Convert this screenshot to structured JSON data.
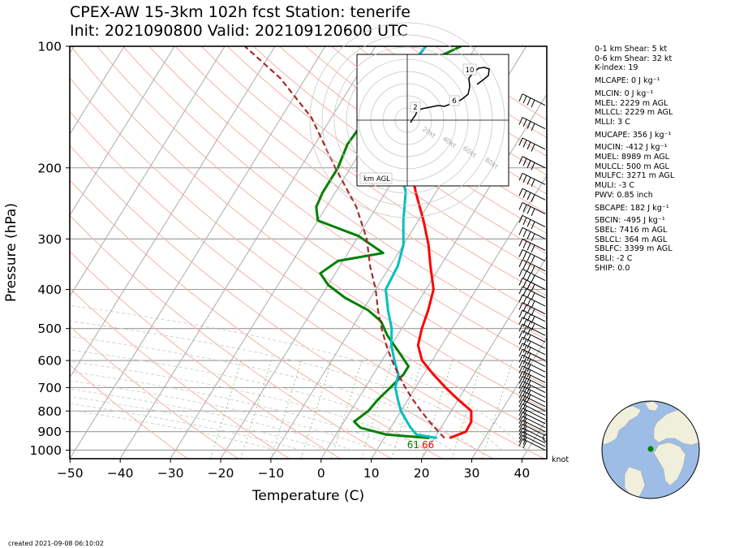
{
  "header": {
    "title_line1": "CPEX-AW 15-3km  102h fcst  Station: tenerife",
    "title_line2": "Init: 2021090800  Valid: 2021091206​00 UTC"
  },
  "stats": [
    "0-1 km Shear: 5 kt",
    "0-6 km Shear: 32 kt",
    "K-index: 19",
    "MLCAPE: 0 J kg⁻¹",
    "MLCIN: 0 J kg⁻¹",
    "MLEL: 2229 m AGL",
    "MLLCL: 2229 m AGL",
    "MLLI: 3 C",
    "MUCAPE: 356 J kg⁻¹",
    "MUCIN: -412 J kg⁻¹",
    "MUEL: 8989 m AGL",
    "MULCL: 500 m AGL",
    "MULFC: 3271 m AGL",
    "MULI: -3 C",
    "PWV: 0.85 inch",
    "SBCAPE: 182 J kg⁻¹",
    "SBCIN: -495 J kg⁻¹",
    "SBEL: 7416 m AGL",
    "SBLCL: 364 m AGL",
    "SBLFC: 3399 m AGL",
    "SBLI: -2 C",
    "SHIP: 0.0"
  ],
  "footer": {
    "created": "created 2021-09-08 06:10:02"
  },
  "chart_data": {
    "type": "line",
    "subtype": "skew-T log-p",
    "xlabel": "Temperature (C)",
    "ylabel": "Pressure (hPa)",
    "xlim": [
      -50,
      45
    ],
    "ylim": [
      1050,
      100
    ],
    "yscale": "log",
    "x_ticks": [
      -50,
      -40,
      -30,
      -20,
      -10,
      0,
      10,
      20,
      30,
      40
    ],
    "x_tick_labels": [
      "−50",
      "−40",
      "−30",
      "−20",
      "−10",
      "0",
      "10",
      "20",
      "30",
      "40"
    ],
    "y_ticks": [
      100,
      200,
      300,
      400,
      500,
      600,
      700,
      800,
      900,
      1000
    ],
    "surface_temp_label": "66",
    "surface_dewpoint_label": "61",
    "wind_unit_label": "knot",
    "series": [
      {
        "name": "temperature",
        "color": "#ff0000",
        "points": [
          [
            23,
            933
          ],
          [
            25.5,
            900
          ],
          [
            25.3,
            850
          ],
          [
            24,
            800
          ],
          [
            20,
            750
          ],
          [
            16,
            700
          ],
          [
            12,
            650
          ],
          [
            8,
            600
          ],
          [
            5.3,
            550
          ],
          [
            4,
            500
          ],
          [
            3,
            450
          ],
          [
            1.5,
            400
          ],
          [
            -2,
            350
          ],
          [
            -5,
            310
          ],
          [
            -9,
            270
          ],
          [
            -14,
            230
          ],
          [
            -18,
            200
          ],
          [
            -24,
            170
          ],
          [
            -28,
            140
          ],
          [
            -31,
            120
          ],
          [
            -30,
            100
          ]
        ]
      },
      {
        "name": "dewpoint",
        "color": "#008000",
        "points": [
          [
            19,
            933
          ],
          [
            10,
            915
          ],
          [
            4,
            880
          ],
          [
            2,
            850
          ],
          [
            3.5,
            800
          ],
          [
            4,
            750
          ],
          [
            5,
            700
          ],
          [
            6,
            650
          ],
          [
            6,
            620
          ],
          [
            3,
            580
          ],
          [
            -2,
            520
          ],
          [
            -5,
            480
          ],
          [
            -9,
            450
          ],
          [
            -15,
            420
          ],
          [
            -20,
            390
          ],
          [
            -23,
            365
          ],
          [
            -21,
            340
          ],
          [
            -13,
            325
          ],
          [
            -20,
            295
          ],
          [
            -30,
            270
          ],
          [
            -32,
            250
          ],
          [
            -32.5,
            230
          ],
          [
            -32.5,
            200
          ],
          [
            -33.5,
            175
          ],
          [
            -33,
            150
          ],
          [
            -32,
            130
          ],
          [
            -28,
            110
          ],
          [
            -23,
            100
          ]
        ]
      },
      {
        "name": "wetbulb",
        "color": "#00bfbf",
        "points": [
          [
            20.5,
            933
          ],
          [
            16,
            915
          ],
          [
            14,
            880
          ],
          [
            12.5,
            850
          ],
          [
            10,
            800
          ],
          [
            8,
            750
          ],
          [
            6,
            700
          ],
          [
            5,
            650
          ],
          [
            2.5,
            600
          ],
          [
            0,
            550
          ],
          [
            -2,
            500
          ],
          [
            -5,
            450
          ],
          [
            -8,
            400
          ],
          [
            -8.5,
            350
          ],
          [
            -10,
            310
          ],
          [
            -13,
            270
          ],
          [
            -16,
            230
          ],
          [
            -20,
            200
          ],
          [
            -25,
            170
          ],
          [
            -28.5,
            140
          ],
          [
            -31,
            120
          ],
          [
            -30,
            100
          ]
        ]
      },
      {
        "name": "parcel",
        "color": "#a52a2a",
        "style": "dashed",
        "points": [
          [
            22,
            933
          ],
          [
            20,
            900
          ],
          [
            17,
            850
          ],
          [
            14,
            800
          ],
          [
            11,
            750
          ],
          [
            8,
            700
          ],
          [
            5,
            650
          ],
          [
            2,
            600
          ],
          [
            -1,
            550
          ],
          [
            -4,
            500
          ],
          [
            -7,
            450
          ],
          [
            -10,
            400
          ],
          [
            -14,
            350
          ],
          [
            -18,
            300
          ],
          [
            -24,
            250
          ],
          [
            -33,
            200
          ],
          [
            -44,
            150
          ],
          [
            -55,
            120
          ],
          [
            -66,
            100
          ]
        ]
      }
    ],
    "hodograph": {
      "label": "km AGL",
      "ring_labels": [
        "20kt",
        "40kt",
        "60kt",
        "80kt"
      ],
      "height_labels": [
        "2",
        "6",
        "10"
      ]
    }
  }
}
